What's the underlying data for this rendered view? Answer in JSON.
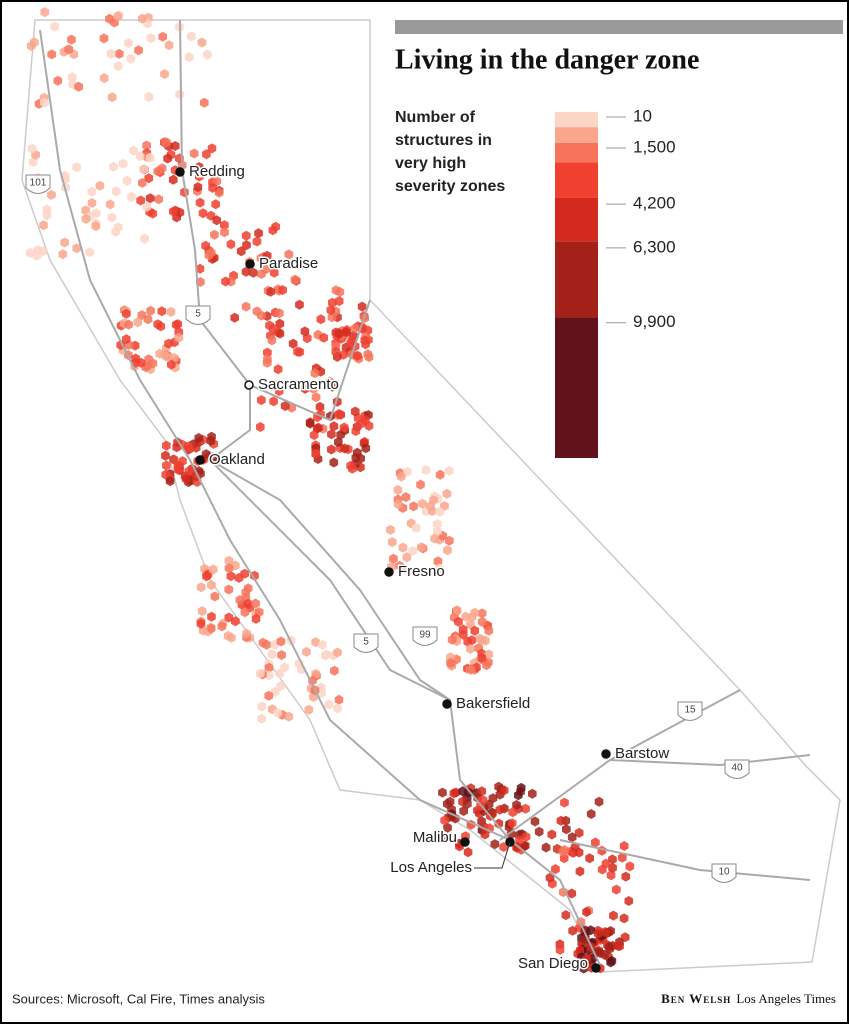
{
  "title": "Living in the danger zone",
  "legend": {
    "title": [
      "Number of",
      "structures in",
      "very high",
      "severity zones"
    ],
    "lim": [
      -230,
      16400
    ],
    "ticks": [
      10,
      {
        "value": 1500,
        "label": "1,500"
      },
      {
        "value": 4200,
        "label": "4,200"
      },
      {
        "value": 6300,
        "label": "6,300"
      },
      {
        "value": 9900,
        "label": "9,900"
      }
    ],
    "bins": [
      -230,
      500,
      1250,
      2200,
      3900,
      6000,
      9650,
      16400
    ],
    "colors": [
      "#fbd5c5",
      "#f9a68c",
      "#f7735a",
      "#ef4030",
      "#d42a1d",
      "#a32119",
      "#62121a"
    ]
  },
  "cities": [
    "Redding",
    "Paradise",
    "Sacramento",
    "Oakland",
    "Fresno",
    "Bakersfield",
    "Barstow",
    "Malibu",
    "Los Angeles",
    "San Diego"
  ],
  "highways": [
    "101",
    "5",
    "5",
    "99",
    "15",
    "40",
    "10"
  ],
  "source": "Sources: Microsoft, Cal Fire, Times analysis",
  "byline": {
    "author": "Ben Welsh",
    "outlet": "Los Angeles Times"
  }
}
